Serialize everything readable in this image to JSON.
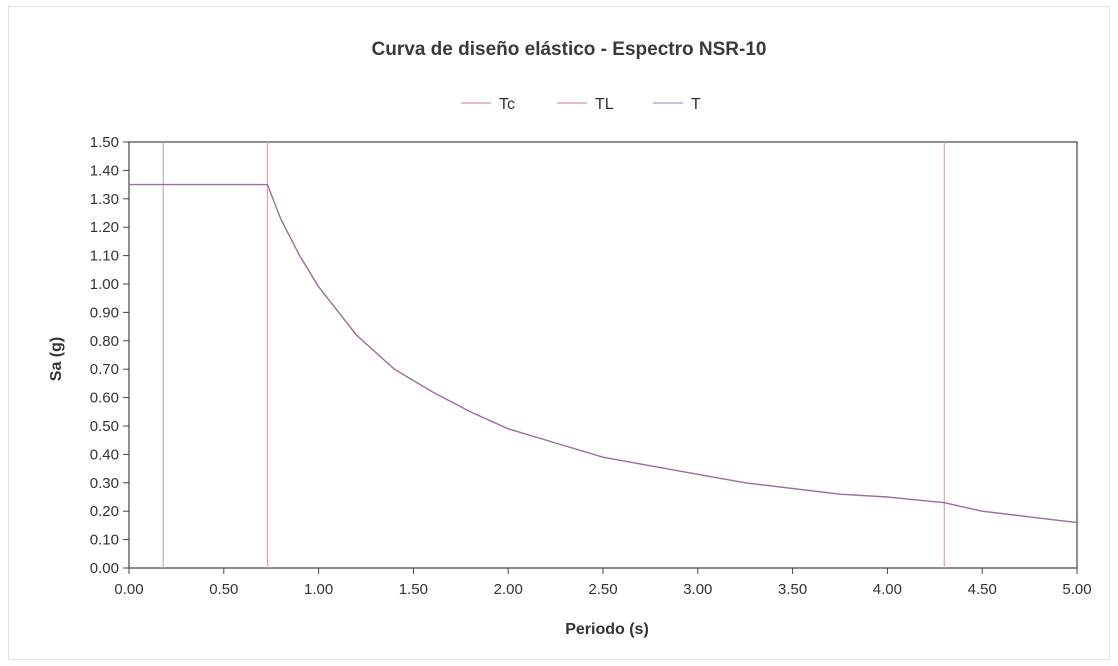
{
  "chart_data": {
    "type": "line",
    "title": "Curva de diseño elástico - Espectro NSR-10",
    "xlabel": "Periodo (s)",
    "ylabel": "Sa (g)",
    "xlim": [
      0,
      5
    ],
    "ylim": [
      0,
      1.5
    ],
    "x_ticks": [
      "0.00",
      "0.50",
      "1.00",
      "1.50",
      "2.00",
      "2.50",
      "3.00",
      "3.50",
      "4.00",
      "4.50",
      "5.00"
    ],
    "y_ticks": [
      "0.00",
      "0.10",
      "0.20",
      "0.30",
      "0.40",
      "0.50",
      "0.60",
      "0.70",
      "0.80",
      "0.90",
      "1.00",
      "1.10",
      "1.20",
      "1.30",
      "1.40",
      "1.50"
    ],
    "legend": [
      "Tc",
      "TL",
      "T"
    ],
    "legend_position": "top-center",
    "grid": false,
    "series": [
      {
        "name": "",
        "color": "#9b6f9b",
        "x": [
          0.0,
          0.73,
          0.8,
          0.9,
          1.0,
          1.2,
          1.4,
          1.6,
          1.8,
          2.0,
          2.25,
          2.5,
          2.75,
          3.0,
          3.25,
          3.5,
          3.75,
          4.0,
          4.3,
          4.5,
          4.75,
          5.0
        ],
        "y": [
          1.35,
          1.35,
          1.23,
          1.1,
          0.99,
          0.82,
          0.7,
          0.62,
          0.55,
          0.49,
          0.44,
          0.39,
          0.36,
          0.33,
          0.3,
          0.28,
          0.26,
          0.25,
          0.23,
          0.2,
          0.18,
          0.16
        ]
      }
    ],
    "vertical_lines": [
      {
        "name": "Tc",
        "x": 0.73,
        "color": "#e8a0b4"
      },
      {
        "name": "TL",
        "x": 4.3,
        "color": "#e8a0b4"
      },
      {
        "name": "T",
        "x": 0.18,
        "color": "#a8b4dc"
      }
    ]
  }
}
